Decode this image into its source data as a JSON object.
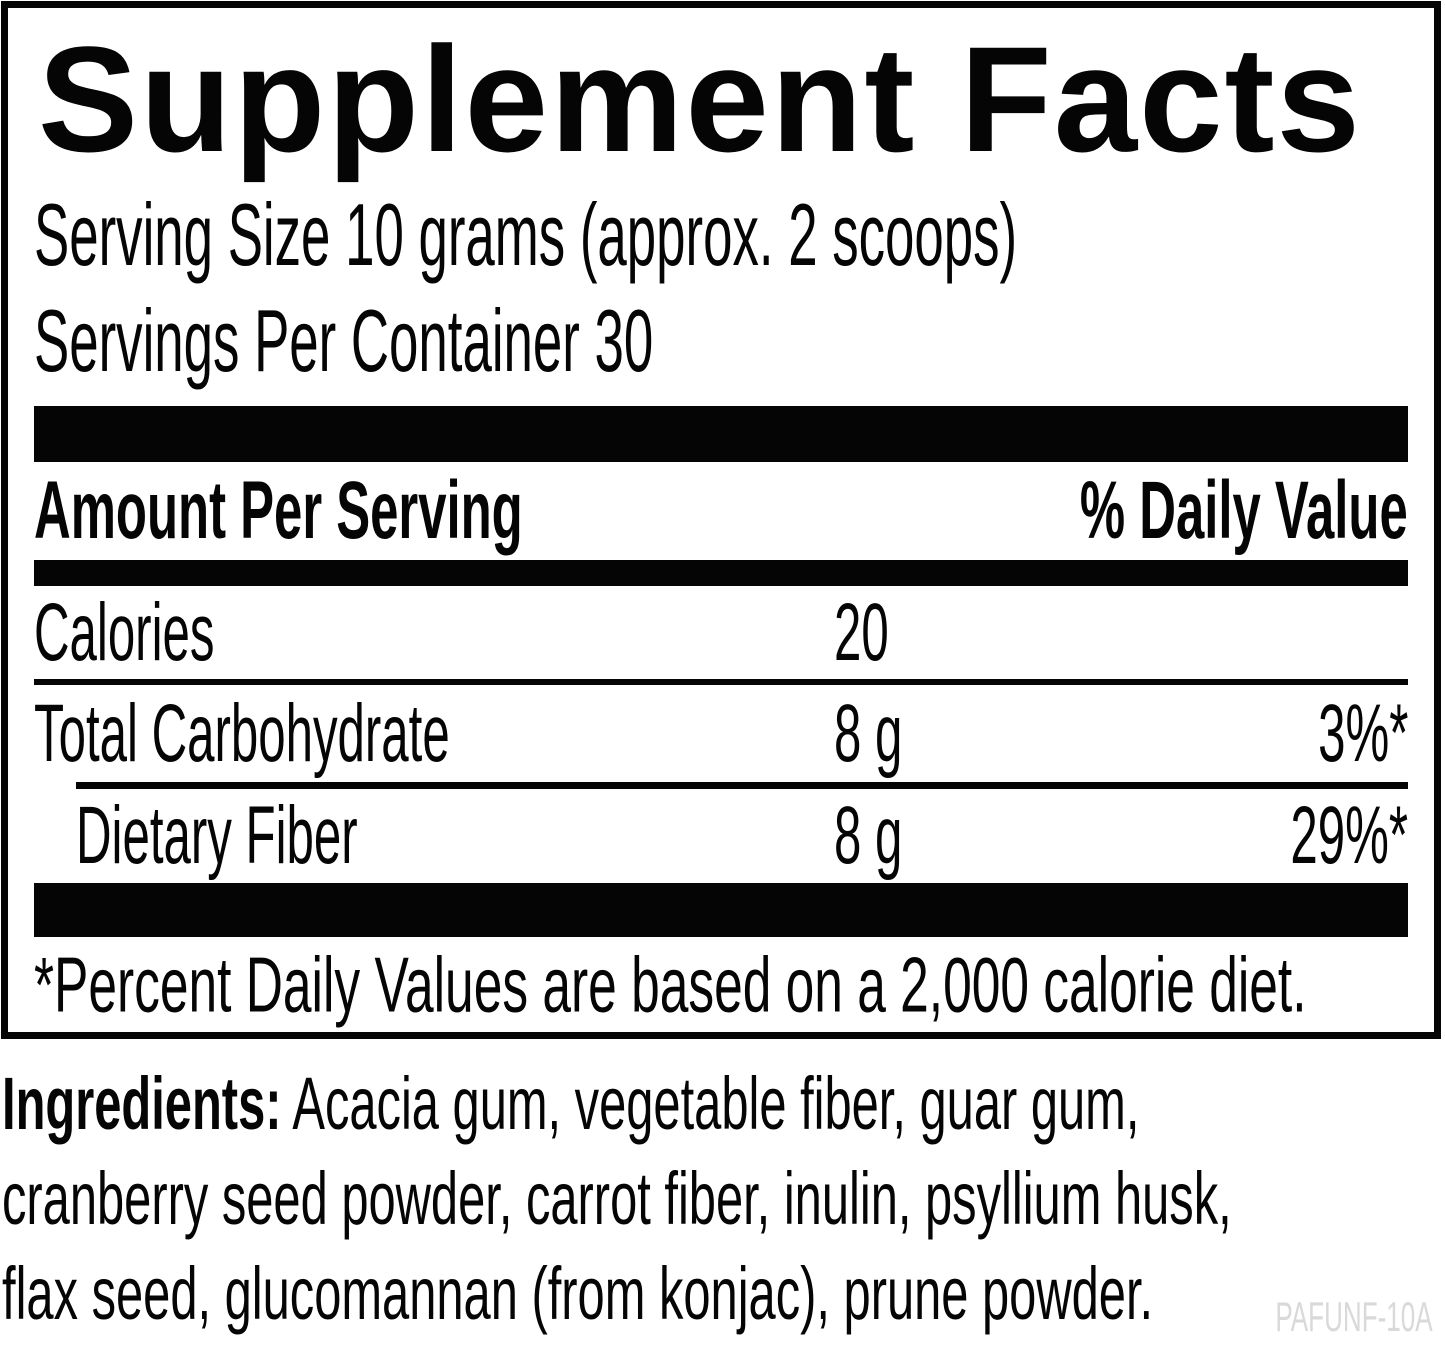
{
  "panel": {
    "title": "Supplement Facts",
    "serving_size": "Serving Size 10 grams (approx. 2 scoops)",
    "servings_per_container": "Servings Per Container 30",
    "header": {
      "amount_per_serving": "Amount Per Serving",
      "daily_value": "% Daily Value"
    },
    "rows": [
      {
        "name": "Calories",
        "amount": "20",
        "dv": ""
      },
      {
        "name": "Total Carbohydrate",
        "amount": "8 g",
        "dv": "3%*"
      },
      {
        "name": "Dietary Fiber",
        "amount": "8 g",
        "dv": "29%*"
      }
    ],
    "footnote": "*Percent Daily Values are based on a 2,000 calorie diet."
  },
  "ingredients": {
    "label": "Ingredients:",
    "full_text": "Ingredients: Acacia gum, vegetable fiber, guar gum, cranberry seed powder, carrot fiber, inulin, psyllium husk, flax seed, glucomannan (from konjac), prune powder.",
    "line1_rest": " Acacia gum, vegetable fiber, guar gum,",
    "line2": "cranberry seed powder, carrot fiber, inulin, psyllium husk,",
    "line3": "flax seed, glucomannan (from konjac), prune powder."
  },
  "product_code": "PAFUNF-10A",
  "colors": {
    "text": "#050505",
    "bars": "#050505",
    "background": "#ffffff",
    "code_muted": "#d9d9d9"
  }
}
